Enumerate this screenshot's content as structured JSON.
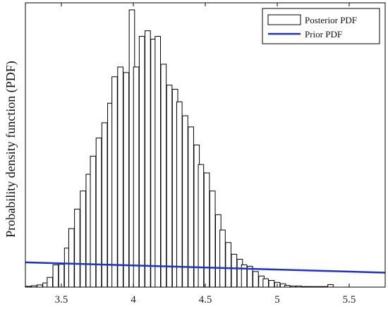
{
  "chart_data": {
    "type": "bar",
    "title": "",
    "xlabel": "",
    "ylabel": "Probability density function (PDF)",
    "xlim": [
      3.25,
      5.75
    ],
    "ylim": [
      0,
      1
    ],
    "xticks": [
      3.5,
      4,
      4.5,
      5,
      5.5
    ],
    "xtick_labels": [
      "3.5",
      "4",
      "4.5",
      "5",
      "5.5"
    ],
    "yticks_shown": false,
    "grid": false,
    "legend_position": "top-right",
    "bin_width": 0.0375,
    "series": [
      {
        "name": "Posterior PDF",
        "kind": "histogram",
        "bin_centers": [
          3.27,
          3.31,
          3.35,
          3.39,
          3.42,
          3.46,
          3.5,
          3.54,
          3.57,
          3.61,
          3.65,
          3.69,
          3.72,
          3.76,
          3.8,
          3.84,
          3.87,
          3.91,
          3.95,
          3.99,
          4.02,
          4.06,
          4.1,
          4.14,
          4.17,
          4.21,
          4.25,
          4.29,
          4.32,
          4.36,
          4.4,
          4.44,
          4.47,
          4.51,
          4.55,
          4.59,
          4.62,
          4.66,
          4.7,
          4.74,
          4.77,
          4.81,
          4.85,
          4.89,
          4.92,
          4.96,
          5.0,
          5.04,
          5.07,
          5.11,
          5.15,
          5.19,
          5.22,
          5.26,
          5.3,
          5.34,
          5.37
        ],
        "values": [
          0.003,
          0.005,
          0.008,
          0.015,
          0.035,
          0.08,
          0.082,
          0.14,
          0.21,
          0.28,
          0.345,
          0.405,
          0.47,
          0.535,
          0.59,
          0.66,
          0.755,
          0.79,
          0.77,
          0.995,
          0.79,
          0.9,
          0.92,
          0.89,
          0.9,
          0.8,
          0.725,
          0.71,
          0.665,
          0.615,
          0.575,
          0.51,
          0.44,
          0.41,
          0.345,
          0.26,
          0.205,
          0.16,
          0.118,
          0.1,
          0.08,
          0.075,
          0.056,
          0.04,
          0.03,
          0.024,
          0.017,
          0.012,
          0.006,
          0.004,
          0.004,
          0.002,
          0.002,
          0.002,
          0.002,
          0.002,
          0.009
        ],
        "color": "#ffffff",
        "edgecolor": "#000000"
      },
      {
        "name": "Prior PDF",
        "kind": "line",
        "x": [
          3.25,
          5.75
        ],
        "y": [
          0.089,
          0.052
        ],
        "color": "#1f2fd6"
      }
    ]
  }
}
